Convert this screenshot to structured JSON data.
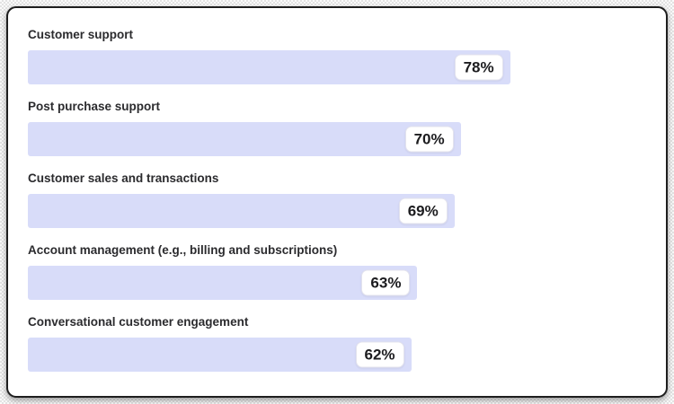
{
  "chart_data": {
    "type": "bar",
    "orientation": "horizontal",
    "title": "",
    "categories": [
      "Customer support",
      "Post purchase support",
      "Customer sales and transactions",
      "Account management (e.g., billing and subscriptions)",
      "Conversational customer engagement"
    ],
    "values": [
      78,
      70,
      69,
      63,
      62
    ],
    "value_labels": [
      "78%",
      "70%",
      "69%",
      "63%",
      "62%"
    ],
    "unit": "%",
    "xlim": [
      0,
      100
    ],
    "grid": false,
    "legend": "none",
    "data_label_position": "inside-end",
    "colors": {
      "bar_fill": "#d8dcf9",
      "value_badge_bg": "#ffffff",
      "value_badge_border": "#e3e3ee",
      "category_label_text": "#2b2b2e",
      "value_text": "#1c1c1f",
      "card_bg": "#ffffff",
      "card_border": "#1e1e1e"
    }
  }
}
